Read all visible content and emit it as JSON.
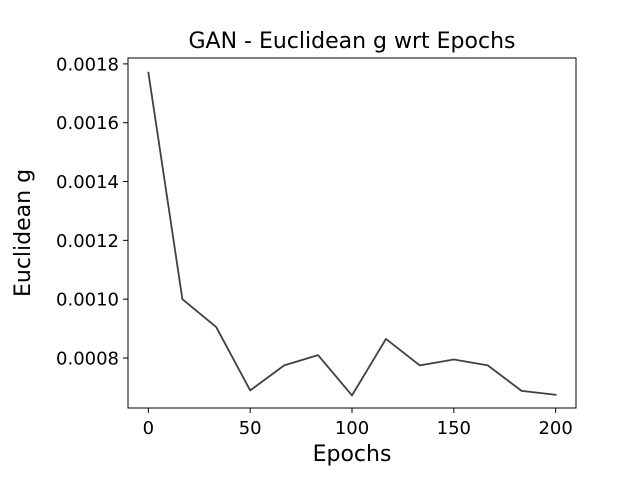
{
  "chart_data": {
    "type": "line",
    "title": "GAN - Euclidean g wrt Epochs",
    "xlabel": "Epochs",
    "ylabel": "Euclidean g",
    "xlim": [
      -10,
      210
    ],
    "ylim": [
      0.00063,
      0.00182
    ],
    "x_ticks": [
      0,
      50,
      100,
      150,
      200
    ],
    "x_tick_labels": [
      "0",
      "50",
      "100",
      "150",
      "200"
    ],
    "y_ticks": [
      0.0008,
      0.001,
      0.0012,
      0.0014,
      0.0016,
      0.0018
    ],
    "y_tick_labels": [
      "0.0008",
      "0.0010",
      "0.0012",
      "0.0014",
      "0.0016",
      "0.0018"
    ],
    "grid": false,
    "line_color": "#404040",
    "series": [
      {
        "x": [
          0,
          16.7,
          33.3,
          50,
          66.7,
          83.3,
          100,
          116.7,
          133.3,
          150,
          166.7,
          183.3,
          200
        ],
        "values": [
          0.00177,
          0.001,
          0.000905,
          0.00069,
          0.000775,
          0.00081,
          0.000673,
          0.000865,
          0.000775,
          0.000795,
          0.000775,
          0.000688,
          0.000675
        ]
      }
    ]
  }
}
